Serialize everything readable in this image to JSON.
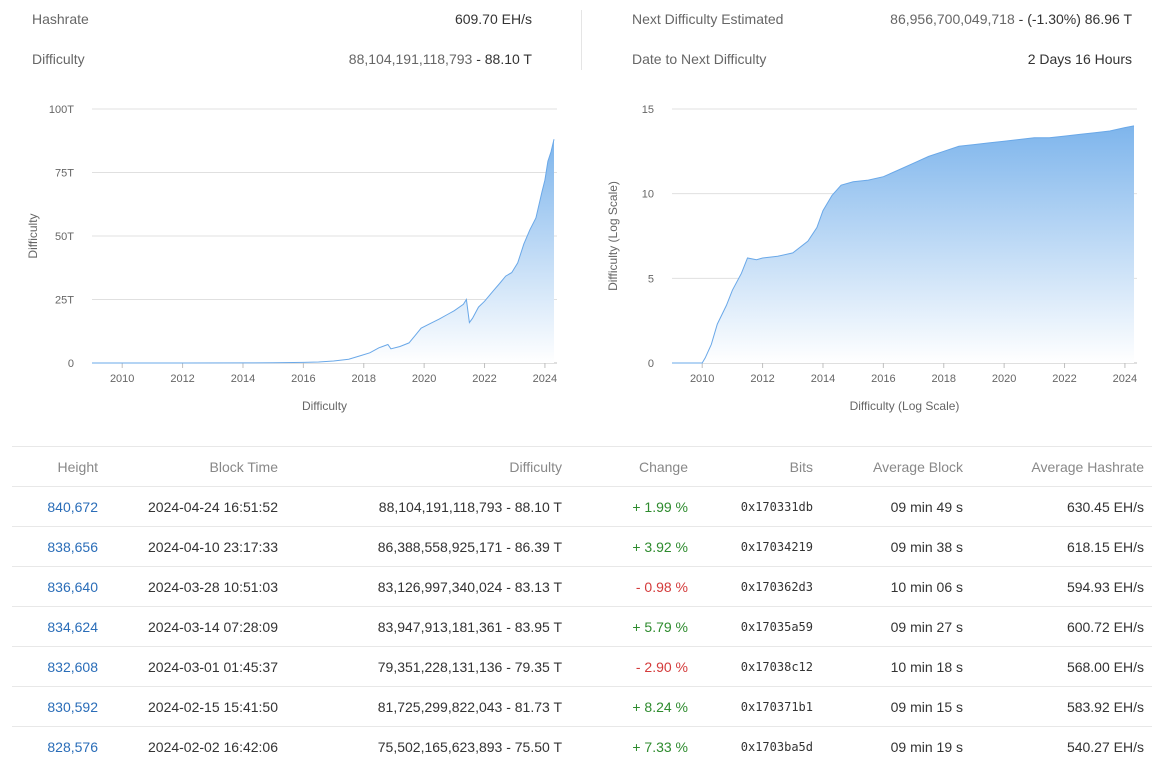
{
  "stats": {
    "hashrate_label": "Hashrate",
    "hashrate_value": "609.70 EH/s",
    "difficulty_label": "Difficulty",
    "difficulty_raw": "88,104,191,118,793",
    "difficulty_short": "88.10 T",
    "next_label": "Next Difficulty Estimated",
    "next_raw": "86,956,700,049,718",
    "next_change": "(-1.30%) 86.96 T",
    "date_label": "Date to Next Difficulty",
    "date_value": "2 Days 16 Hours"
  },
  "colors": {
    "area_top": "#7eb5ec",
    "area_bottom": "#ffffff",
    "line": "#6aa8e8",
    "link": "#2a6db8",
    "positive": "#2e8b2e",
    "negative": "#d43b3b"
  },
  "chart_data": [
    {
      "type": "area",
      "title": "",
      "xlabel": "Difficulty",
      "ylabel": "Difficulty",
      "y_tick_labels": [
        "0",
        "25T",
        "50T",
        "75T",
        "100T"
      ],
      "y_ticks": [
        0,
        25,
        50,
        75,
        100
      ],
      "ylim": [
        0,
        100
      ],
      "x_tick_labels": [
        "2010",
        "2012",
        "2014",
        "2016",
        "2018",
        "2020",
        "2022",
        "2024"
      ],
      "xlim": [
        2009.0,
        2024.4
      ],
      "grid": true,
      "series": [
        {
          "x": [
            2009.0,
            2012.0,
            2014.0,
            2015.0,
            2016.0,
            2016.5,
            2017.0,
            2017.5,
            2017.9,
            2018.2,
            2018.5,
            2018.8,
            2018.9,
            2019.2,
            2019.5,
            2019.7,
            2019.9,
            2020.2,
            2020.5,
            2020.8,
            2021.0,
            2021.3,
            2021.4,
            2021.5,
            2021.6,
            2021.8,
            2022.0,
            2022.3,
            2022.5,
            2022.7,
            2022.9,
            2023.1,
            2023.3,
            2023.5,
            2023.7,
            2023.9,
            2024.0,
            2024.1,
            2024.2,
            2024.3
          ],
          "y": [
            0.0,
            0.0,
            0.05,
            0.07,
            0.25,
            0.4,
            0.8,
            1.5,
            2.9,
            4.0,
            6.0,
            7.3,
            5.6,
            6.5,
            7.9,
            10.8,
            13.7,
            15.5,
            17.3,
            19.3,
            20.6,
            23.1,
            25.0,
            15.9,
            17.6,
            22.0,
            24.3,
            28.6,
            31.3,
            34.2,
            35.6,
            39.4,
            46.8,
            52.4,
            57.1,
            67.3,
            72.0,
            79.4,
            83.1,
            88.1
          ]
        }
      ]
    },
    {
      "type": "area",
      "title": "",
      "xlabel": "Difficulty (Log Scale)",
      "ylabel": "Difficulty (Log Scale)",
      "y_tick_labels": [
        "0",
        "5",
        "10",
        "15"
      ],
      "y_ticks": [
        0,
        5,
        10,
        15
      ],
      "ylim": [
        0,
        15
      ],
      "x_tick_labels": [
        "2010",
        "2012",
        "2014",
        "2016",
        "2018",
        "2020",
        "2022",
        "2024"
      ],
      "xlim": [
        2009.0,
        2024.4
      ],
      "grid": true,
      "series": [
        {
          "x": [
            2009.0,
            2010.0,
            2010.1,
            2010.3,
            2010.5,
            2010.8,
            2011.0,
            2011.3,
            2011.5,
            2011.8,
            2012.0,
            2012.5,
            2013.0,
            2013.5,
            2013.8,
            2014.0,
            2014.3,
            2014.6,
            2015.0,
            2015.5,
            2016.0,
            2016.5,
            2017.0,
            2017.5,
            2018.0,
            2018.5,
            2019.0,
            2019.5,
            2020.0,
            2020.5,
            2021.0,
            2021.5,
            2022.0,
            2022.5,
            2023.0,
            2023.5,
            2024.0,
            2024.3
          ],
          "y": [
            0.0,
            0.0,
            0.3,
            1.1,
            2.3,
            3.4,
            4.3,
            5.3,
            6.2,
            6.1,
            6.2,
            6.3,
            6.5,
            7.2,
            8.0,
            9.0,
            9.9,
            10.5,
            10.7,
            10.8,
            11.0,
            11.4,
            11.8,
            12.2,
            12.5,
            12.8,
            12.9,
            13.0,
            13.1,
            13.2,
            13.3,
            13.3,
            13.4,
            13.5,
            13.6,
            13.7,
            13.9,
            14.0
          ]
        }
      ]
    }
  ],
  "table": {
    "headers": [
      "Height",
      "Block Time",
      "Difficulty",
      "Change",
      "Bits",
      "Average Block",
      "Average Hashrate"
    ],
    "rows": [
      {
        "height": "840,672",
        "time": "2024-04-24 16:51:52",
        "difficulty": "88,104,191,118,793 - 88.10 T",
        "change": "+ 1.99 %",
        "positive": true,
        "bits": "0x170331db",
        "avg_block": "09 min 49 s",
        "avg_hashrate": "630.45 EH/s"
      },
      {
        "height": "838,656",
        "time": "2024-04-10 23:17:33",
        "difficulty": "86,388,558,925,171 - 86.39 T",
        "change": "+ 3.92 %",
        "positive": true,
        "bits": "0x17034219",
        "avg_block": "09 min 38 s",
        "avg_hashrate": "618.15 EH/s"
      },
      {
        "height": "836,640",
        "time": "2024-03-28 10:51:03",
        "difficulty": "83,126,997,340,024 - 83.13 T",
        "change": "- 0.98 %",
        "positive": false,
        "bits": "0x170362d3",
        "avg_block": "10 min 06 s",
        "avg_hashrate": "594.93 EH/s"
      },
      {
        "height": "834,624",
        "time": "2024-03-14 07:28:09",
        "difficulty": "83,947,913,181,361 - 83.95 T",
        "change": "+ 5.79 %",
        "positive": true,
        "bits": "0x17035a59",
        "avg_block": "09 min 27 s",
        "avg_hashrate": "600.72 EH/s"
      },
      {
        "height": "832,608",
        "time": "2024-03-01 01:45:37",
        "difficulty": "79,351,228,131,136 - 79.35 T",
        "change": "- 2.90 %",
        "positive": false,
        "bits": "0x17038c12",
        "avg_block": "10 min 18 s",
        "avg_hashrate": "568.00 EH/s"
      },
      {
        "height": "830,592",
        "time": "2024-02-15 15:41:50",
        "difficulty": "81,725,299,822,043 - 81.73 T",
        "change": "+ 8.24 %",
        "positive": true,
        "bits": "0x170371b1",
        "avg_block": "09 min 15 s",
        "avg_hashrate": "583.92 EH/s"
      },
      {
        "height": "828,576",
        "time": "2024-02-02 16:42:06",
        "difficulty": "75,502,165,623,893 - 75.50 T",
        "change": "+ 7.33 %",
        "positive": true,
        "bits": "0x1703ba5d",
        "avg_block": "09 min 19 s",
        "avg_hashrate": "540.27 EH/s"
      }
    ]
  }
}
